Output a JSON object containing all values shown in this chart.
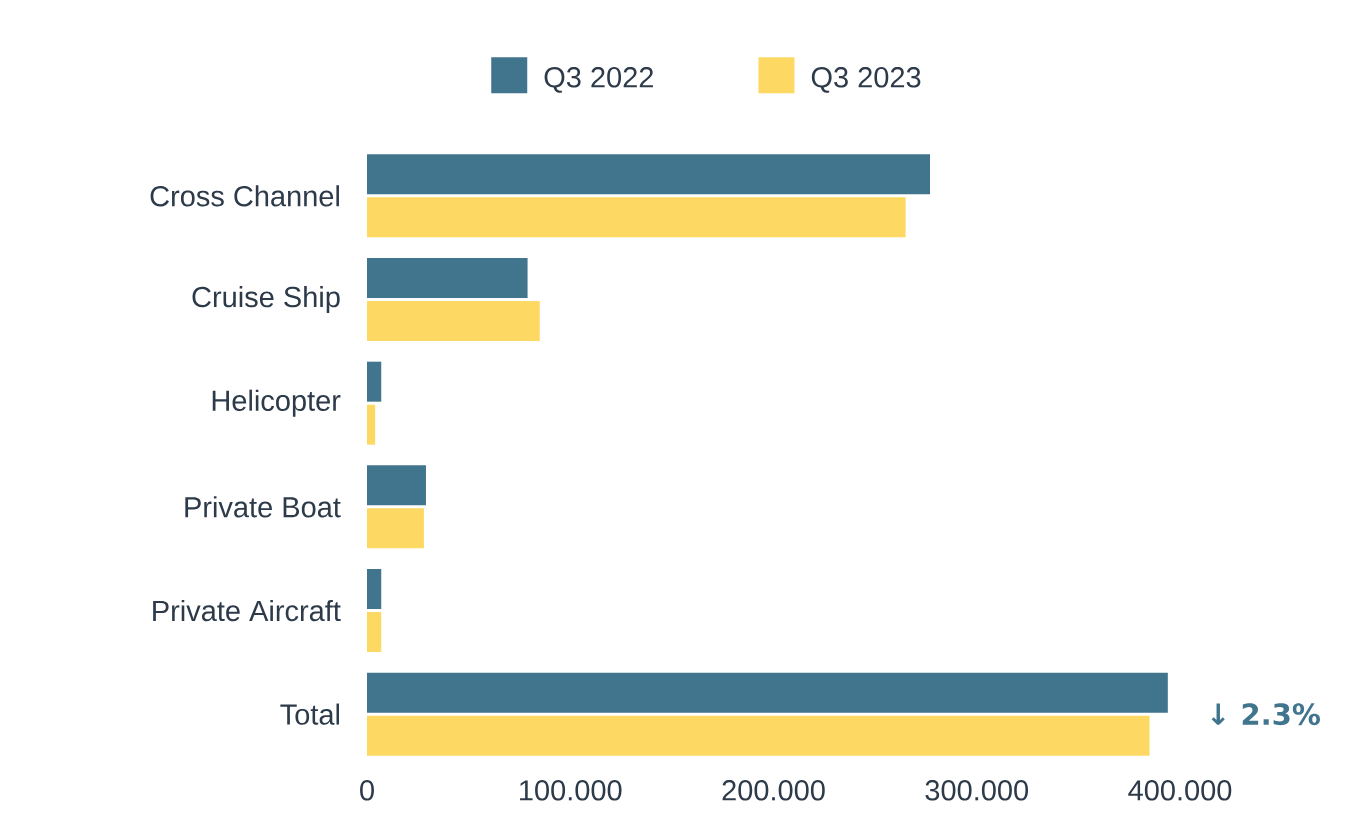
{
  "chart_data": {
    "type": "bar",
    "orientation": "horizontal",
    "categories": [
      "Cross Channel",
      "Cruise Ship",
      "Helicopter",
      "Private Boat",
      "Private Aircraft",
      "Total"
    ],
    "series": [
      {
        "name": "Q3 2022",
        "color": "#41748d",
        "values": [
          277,
          79,
          7,
          29,
          7,
          394
        ]
      },
      {
        "name": "Q3 2023",
        "color": "#fdd963",
        "values": [
          265,
          85,
          4,
          28,
          7,
          385
        ]
      }
    ],
    "xlim": [
      0,
      400
    ],
    "xticks": [
      0,
      {
        "value": 100,
        "label": "100.000"
      },
      {
        "value": 200,
        "label": "200.000"
      },
      {
        "value": 300,
        "label": "300.000"
      },
      {
        "value": 400,
        "label": "400.000"
      }
    ],
    "legend": "top",
    "grid": false,
    "annotations": [
      "↓ 2.3%"
    ]
  }
}
